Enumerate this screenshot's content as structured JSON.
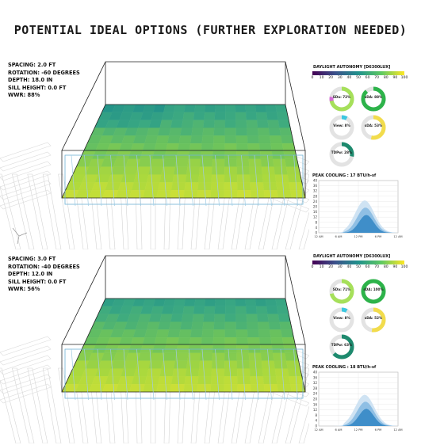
{
  "title": "POTENTIAL IDEAL OPTIONS (FURTHER EXPLORATION NEEDED)",
  "panels": [
    {
      "params": [
        "SPACING: 2.0 FT",
        "ROTATION: -60 DEGREES",
        "DEPTH: 18.0 IN",
        "SILL HEIGHT: 0.0 FT",
        "WWR: 88%"
      ],
      "legend_title": "DAYLIGHT AUTONOMY [D6300LUX]",
      "legend_ticks": [
        "0",
        "10",
        "20",
        "30",
        "40",
        "50",
        "60",
        "70",
        "80",
        "90",
        "100"
      ],
      "metrics": [
        {
          "label": "SDa: 72%",
          "value": 72,
          "color": "#a6e05a",
          "accent": "#d46bd6"
        },
        {
          "label": "sDA: 88%",
          "value": 88,
          "color": "#2db34a",
          "accent": null
        },
        {
          "label": "View: 8%",
          "value": 8,
          "color": "#3cc7e0",
          "accent": null
        },
        {
          "label": "sDA: 53%",
          "value": 53,
          "color": "#f2dc4c",
          "accent": null
        },
        {
          "label": "TDPw: 28%",
          "value": 28,
          "color": "#1e8a6e",
          "accent": null
        }
      ],
      "peak_title": "PEAK COOLING : 17 BTU/h-sf",
      "cool_y_ticks": [
        "40",
        "36",
        "32",
        "28",
        "24",
        "20",
        "16",
        "12",
        "8",
        "4",
        "0"
      ],
      "cool_x_ticks": [
        "12 AM",
        "6 AM",
        "12 PM",
        "6 PM",
        "12 AM"
      ]
    },
    {
      "params": [
        "SPACING: 3.0 FT",
        "ROTATION: -40 DEGREES",
        "DEPTH: 12.0 IN",
        "SILL HEIGHT: 0.0 FT",
        "WWR: 56%"
      ],
      "legend_title": "DAYLIGHT AUTONOMY [D6300LUX]",
      "legend_ticks": [
        "0",
        "10",
        "20",
        "30",
        "40",
        "50",
        "60",
        "70",
        "80",
        "90",
        "100"
      ],
      "metrics": [
        {
          "label": "SDa: 71%",
          "value": 71,
          "color": "#a6e05a",
          "accent": null
        },
        {
          "label": "sDA: 100%",
          "value": 100,
          "color": "#2db34a",
          "accent": null
        },
        {
          "label": "View: 8%",
          "value": 8,
          "color": "#3cc7e0",
          "accent": null
        },
        {
          "label": "sDA: 52%",
          "value": 52,
          "color": "#f2dc4c",
          "accent": null
        },
        {
          "label": "TDPw: 63%",
          "value": 63,
          "color": "#1e8a6e",
          "accent": null
        }
      ],
      "peak_title": "PEAK COOLING : 18 BTU/h-sf",
      "cool_y_ticks": [
        "40",
        "36",
        "32",
        "28",
        "24",
        "20",
        "16",
        "12",
        "8",
        "4",
        "0"
      ],
      "cool_x_ticks": [
        "12 AM",
        "6 AM",
        "12 PM",
        "6 PM",
        "12 AM"
      ]
    }
  ]
}
